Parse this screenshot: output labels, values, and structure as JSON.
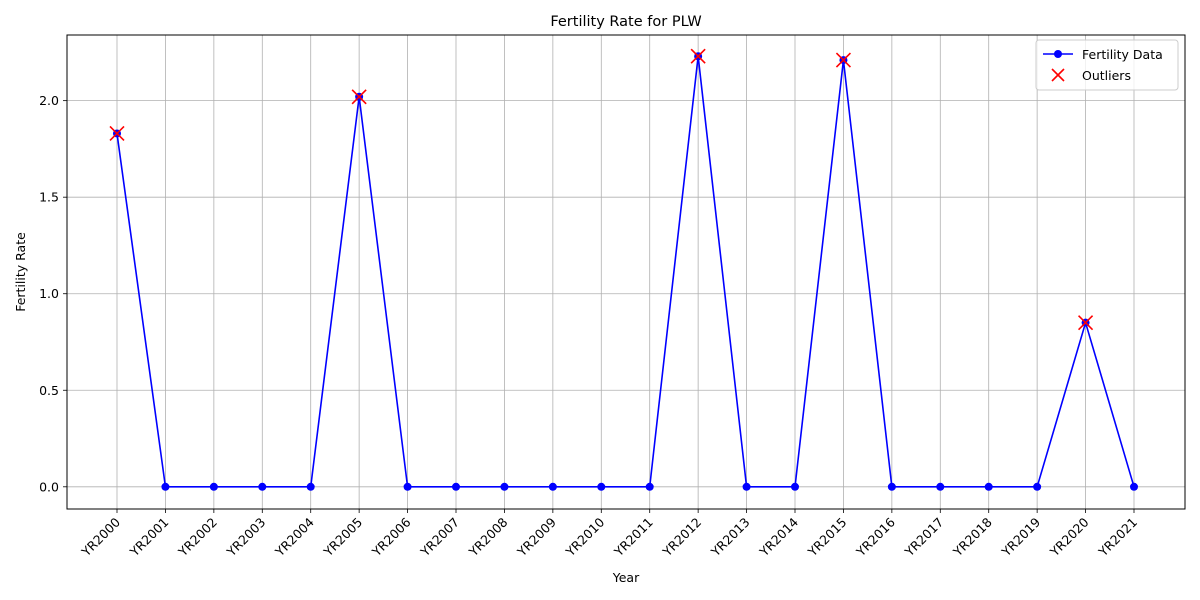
{
  "chart_data": {
    "type": "line",
    "title": "Fertility Rate for PLW",
    "xlabel": "Year",
    "ylabel": "Fertility Rate",
    "categories": [
      "YR2000",
      "YR2001",
      "YR2002",
      "YR2003",
      "YR2004",
      "YR2005",
      "YR2006",
      "YR2007",
      "YR2008",
      "YR2009",
      "YR2010",
      "YR2011",
      "YR2012",
      "YR2013",
      "YR2014",
      "YR2015",
      "YR2016",
      "YR2017",
      "YR2018",
      "YR2019",
      "YR2020",
      "YR2021"
    ],
    "series": [
      {
        "name": "Fertility Data",
        "color": "#0000ff",
        "marker": "circle",
        "values": [
          1.83,
          0,
          0,
          0,
          0,
          2.02,
          0,
          0,
          0,
          0,
          0,
          0,
          2.23,
          0,
          0,
          2.21,
          0,
          0,
          0,
          0,
          0.85,
          0
        ]
      },
      {
        "name": "Outliers",
        "color": "#ff0000",
        "marker": "x",
        "points": [
          {
            "x": "YR2000",
            "y": 1.83
          },
          {
            "x": "YR2005",
            "y": 2.02
          },
          {
            "x": "YR2012",
            "y": 2.23
          },
          {
            "x": "YR2015",
            "y": 2.21
          },
          {
            "x": "YR2020",
            "y": 0.85
          }
        ]
      }
    ],
    "ylim": [
      -0.115,
      2.34
    ],
    "yticks": [
      0.0,
      0.5,
      1.0,
      1.5,
      2.0
    ],
    "ytick_labels": [
      "0.0",
      "0.5",
      "1.0",
      "1.5",
      "2.0"
    ],
    "grid": true,
    "legend_position": "top-right"
  }
}
